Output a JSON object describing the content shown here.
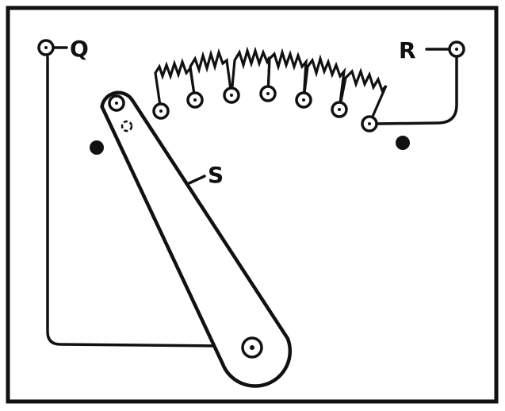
{
  "labels": {
    "q": "Q",
    "r": "R",
    "s": "S"
  },
  "components": {
    "contact_studs": 7,
    "stop_pins": 2
  },
  "colors": {
    "ink": "#111111",
    "paper": "#ffffff"
  }
}
